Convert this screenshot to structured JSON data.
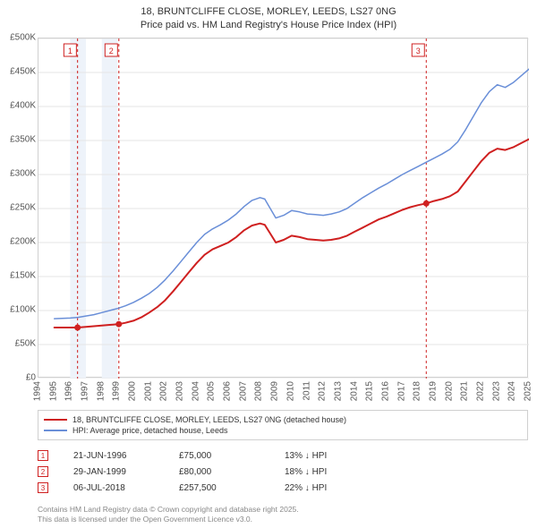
{
  "title_line1": "18, BRUNTCLIFFE CLOSE, MORLEY, LEEDS, LS27 0NG",
  "title_line2": "Price paid vs. HM Land Registry's House Price Index (HPI)",
  "chart": {
    "type": "line",
    "background_color": "#ffffff",
    "grid_color": "#e5e5e5",
    "border_color": "#d0d0d0",
    "x_min": 1994,
    "x_max": 2025,
    "x_ticks": [
      1994,
      1995,
      1996,
      1997,
      1998,
      1999,
      2000,
      2001,
      2002,
      2003,
      2004,
      2005,
      2006,
      2007,
      2008,
      2009,
      2010,
      2011,
      2012,
      2013,
      2014,
      2015,
      2016,
      2017,
      2018,
      2019,
      2020,
      2021,
      2022,
      2023,
      2024,
      2025
    ],
    "y_min": 0,
    "y_max": 500000,
    "y_ticks": [
      0,
      50000,
      100000,
      150000,
      200000,
      250000,
      300000,
      350000,
      400000,
      450000,
      500000
    ],
    "y_tick_labels": [
      "£0",
      "£50K",
      "£100K",
      "£150K",
      "£200K",
      "£250K",
      "£300K",
      "£350K",
      "£400K",
      "£450K",
      "£500K"
    ],
    "shade_bands": [
      {
        "from": 1996,
        "to": 1997,
        "color": "#eef3fa"
      },
      {
        "from": 1998,
        "to": 1999,
        "color": "#eef3fa"
      }
    ],
    "marker_lines": [
      {
        "x": 1996.47,
        "color": "#cf2020",
        "dash": "3,3"
      },
      {
        "x": 1999.08,
        "color": "#cf2020",
        "dash": "3,3"
      },
      {
        "x": 2018.51,
        "color": "#cf2020",
        "dash": "3,3"
      }
    ],
    "marker_boxes": [
      {
        "x": 1996.0,
        "label": "1",
        "color": "#cf2020"
      },
      {
        "x": 1998.6,
        "label": "2",
        "color": "#cf2020"
      },
      {
        "x": 2018.0,
        "label": "3",
        "color": "#cf2020"
      }
    ],
    "series": [
      {
        "id": "price_paid",
        "label": "18, BRUNTCLIFFE CLOSE, MORLEY, LEEDS, LS27 0NG (detached house)",
        "color": "#cf2020",
        "line_width": 2,
        "data": [
          [
            1995.0,
            75000
          ],
          [
            1995.5,
            75000
          ],
          [
            1996.0,
            75000
          ],
          [
            1996.47,
            75000
          ],
          [
            1997.0,
            76000
          ],
          [
            1997.5,
            77000
          ],
          [
            1998.0,
            78000
          ],
          [
            1998.5,
            79000
          ],
          [
            1999.08,
            80000
          ],
          [
            1999.5,
            82000
          ],
          [
            2000.0,
            85000
          ],
          [
            2000.5,
            90000
          ],
          [
            2001.0,
            97000
          ],
          [
            2001.5,
            105000
          ],
          [
            2002.0,
            115000
          ],
          [
            2002.5,
            128000
          ],
          [
            2003.0,
            142000
          ],
          [
            2003.5,
            156000
          ],
          [
            2004.0,
            170000
          ],
          [
            2004.5,
            182000
          ],
          [
            2005.0,
            190000
          ],
          [
            2005.5,
            195000
          ],
          [
            2006.0,
            200000
          ],
          [
            2006.5,
            208000
          ],
          [
            2007.0,
            218000
          ],
          [
            2007.5,
            225000
          ],
          [
            2008.0,
            228000
          ],
          [
            2008.3,
            226000
          ],
          [
            2008.6,
            215000
          ],
          [
            2009.0,
            200000
          ],
          [
            2009.5,
            204000
          ],
          [
            2010.0,
            210000
          ],
          [
            2010.5,
            208000
          ],
          [
            2011.0,
            205000
          ],
          [
            2011.5,
            204000
          ],
          [
            2012.0,
            203000
          ],
          [
            2012.5,
            204000
          ],
          [
            2013.0,
            206000
          ],
          [
            2013.5,
            210000
          ],
          [
            2014.0,
            216000
          ],
          [
            2014.5,
            222000
          ],
          [
            2015.0,
            228000
          ],
          [
            2015.5,
            234000
          ],
          [
            2016.0,
            238000
          ],
          [
            2016.5,
            243000
          ],
          [
            2017.0,
            248000
          ],
          [
            2017.5,
            252000
          ],
          [
            2018.0,
            255000
          ],
          [
            2018.51,
            257500
          ],
          [
            2019.0,
            261000
          ],
          [
            2019.5,
            264000
          ],
          [
            2020.0,
            268000
          ],
          [
            2020.5,
            275000
          ],
          [
            2021.0,
            290000
          ],
          [
            2021.5,
            305000
          ],
          [
            2022.0,
            320000
          ],
          [
            2022.5,
            332000
          ],
          [
            2023.0,
            338000
          ],
          [
            2023.5,
            336000
          ],
          [
            2024.0,
            340000
          ],
          [
            2024.5,
            346000
          ],
          [
            2025.0,
            352000
          ]
        ],
        "markers_at": [
          [
            1996.47,
            75000
          ],
          [
            1999.08,
            80000
          ],
          [
            2018.51,
            257500
          ]
        ]
      },
      {
        "id": "hpi",
        "label": "HPI: Average price, detached house, Leeds",
        "color": "#6a8fd8",
        "line_width": 1.5,
        "data": [
          [
            1995.0,
            88000
          ],
          [
            1995.5,
            88500
          ],
          [
            1996.0,
            89000
          ],
          [
            1996.5,
            90000
          ],
          [
            1997.0,
            92000
          ],
          [
            1997.5,
            94000
          ],
          [
            1998.0,
            97000
          ],
          [
            1998.5,
            100000
          ],
          [
            1999.0,
            103000
          ],
          [
            1999.5,
            107000
          ],
          [
            2000.0,
            112000
          ],
          [
            2000.5,
            118000
          ],
          [
            2001.0,
            125000
          ],
          [
            2001.5,
            134000
          ],
          [
            2002.0,
            145000
          ],
          [
            2002.5,
            158000
          ],
          [
            2003.0,
            172000
          ],
          [
            2003.5,
            186000
          ],
          [
            2004.0,
            200000
          ],
          [
            2004.5,
            212000
          ],
          [
            2005.0,
            220000
          ],
          [
            2005.5,
            226000
          ],
          [
            2006.0,
            233000
          ],
          [
            2006.5,
            242000
          ],
          [
            2007.0,
            253000
          ],
          [
            2007.5,
            262000
          ],
          [
            2008.0,
            266000
          ],
          [
            2008.3,
            264000
          ],
          [
            2008.6,
            252000
          ],
          [
            2009.0,
            236000
          ],
          [
            2009.5,
            240000
          ],
          [
            2010.0,
            247000
          ],
          [
            2010.5,
            245000
          ],
          [
            2011.0,
            242000
          ],
          [
            2011.5,
            241000
          ],
          [
            2012.0,
            240000
          ],
          [
            2012.5,
            242000
          ],
          [
            2013.0,
            245000
          ],
          [
            2013.5,
            250000
          ],
          [
            2014.0,
            258000
          ],
          [
            2014.5,
            266000
          ],
          [
            2015.0,
            273000
          ],
          [
            2015.5,
            280000
          ],
          [
            2016.0,
            286000
          ],
          [
            2016.5,
            293000
          ],
          [
            2017.0,
            300000
          ],
          [
            2017.5,
            306000
          ],
          [
            2018.0,
            312000
          ],
          [
            2018.5,
            318000
          ],
          [
            2019.0,
            324000
          ],
          [
            2019.5,
            330000
          ],
          [
            2020.0,
            337000
          ],
          [
            2020.5,
            348000
          ],
          [
            2021.0,
            366000
          ],
          [
            2021.5,
            386000
          ],
          [
            2022.0,
            406000
          ],
          [
            2022.5,
            422000
          ],
          [
            2023.0,
            432000
          ],
          [
            2023.5,
            428000
          ],
          [
            2024.0,
            435000
          ],
          [
            2024.5,
            445000
          ],
          [
            2025.0,
            455000
          ]
        ]
      }
    ]
  },
  "transactions": [
    {
      "marker": "1",
      "marker_color": "#cf2020",
      "date": "21-JUN-1996",
      "price": "£75,000",
      "hpi_delta": "13% ↓ HPI"
    },
    {
      "marker": "2",
      "marker_color": "#cf2020",
      "date": "29-JAN-1999",
      "price": "£80,000",
      "hpi_delta": "18% ↓ HPI"
    },
    {
      "marker": "3",
      "marker_color": "#cf2020",
      "date": "06-JUL-2018",
      "price": "£257,500",
      "hpi_delta": "22% ↓ HPI"
    }
  ],
  "footer_line1": "Contains HM Land Registry data © Crown copyright and database right 2025.",
  "footer_line2": "This data is licensed under the Open Government Licence v3.0."
}
